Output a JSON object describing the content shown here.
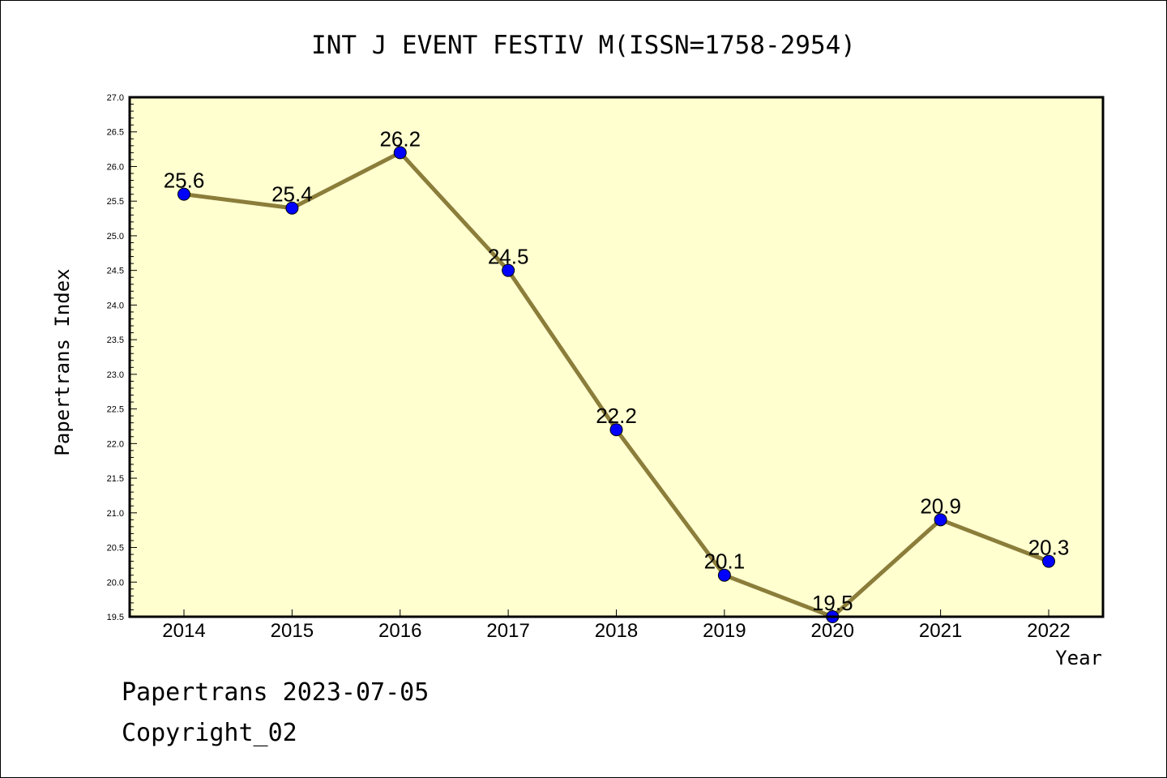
{
  "chart_data": {
    "type": "line",
    "title": "INT J EVENT FESTIV M(ISSN=1758-2954)",
    "xlabel": "Year",
    "ylabel": "Papertrans Index",
    "categories": [
      "2014",
      "2015",
      "2016",
      "2017",
      "2018",
      "2019",
      "2020",
      "2021",
      "2022"
    ],
    "series": [
      {
        "values": [
          25.6,
          25.4,
          26.2,
          24.5,
          22.2,
          20.1,
          19.5,
          20.9,
          20.3
        ]
      }
    ],
    "data_labels": [
      "25.6",
      "25.4",
      "26.2",
      "24.5",
      "22.2",
      "20.1",
      "19.5",
      "20.9",
      "20.3"
    ],
    "ylim": [
      19.5,
      27.0
    ],
    "yticks": [
      "19.5",
      "20.0",
      "20.5",
      "21.0",
      "21.5",
      "22.0",
      "22.5",
      "23.0",
      "23.5",
      "24.0",
      "24.5",
      "25.0",
      "25.5",
      "26.0",
      "26.5",
      "27.0"
    ],
    "grid": false,
    "line_color": "#8B7D3A",
    "marker_color": "#0000FF",
    "plot_background": "#FFFFD0"
  },
  "footer": {
    "line1": "Papertrans 2023-07-05",
    "line2": "Copyright_02"
  }
}
